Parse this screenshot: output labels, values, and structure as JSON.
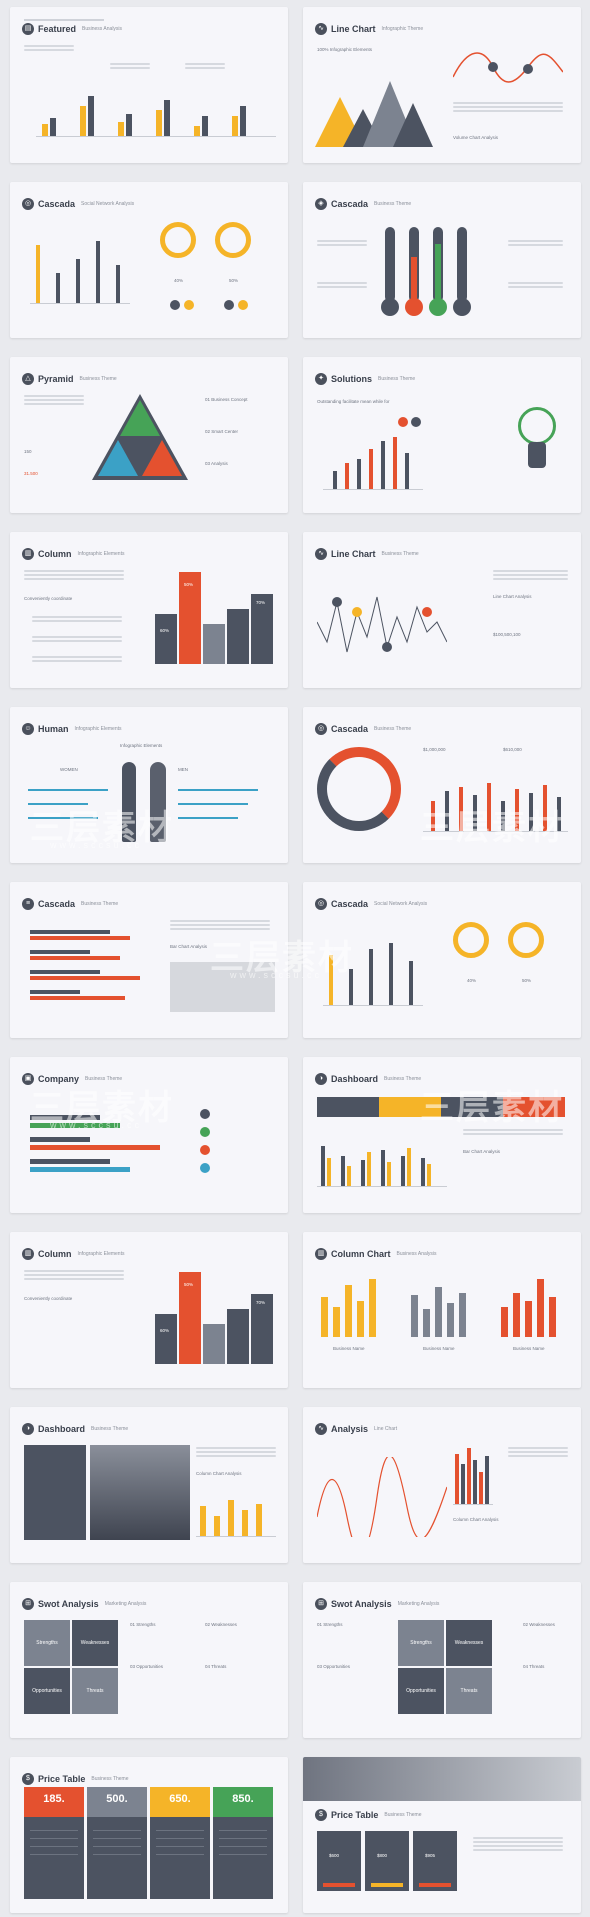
{
  "slides": [
    {
      "title": "Featured",
      "sub": "Business Analysis"
    },
    {
      "title": "Line Chart",
      "sub": "Infographic Theme"
    },
    {
      "title": "Cascada",
      "sub": "Social Network Analysis"
    },
    {
      "title": "Cascada",
      "sub": "Business Theme"
    },
    {
      "title": "Pyramid",
      "sub": "Business Theme"
    },
    {
      "title": "Solutions",
      "sub": "Business Theme"
    },
    {
      "title": "Column",
      "sub": "Infographic Elements"
    },
    {
      "title": "Line Chart",
      "sub": "Business Theme"
    },
    {
      "title": "Human",
      "sub": "Infographic Elements"
    },
    {
      "title": "Cascada",
      "sub": "Business Theme"
    },
    {
      "title": "Cascada",
      "sub": "Business Theme"
    },
    {
      "title": "Cascada",
      "sub": "Social Network Analysis"
    },
    {
      "title": "Company",
      "sub": "Business Theme"
    },
    {
      "title": "Dashboard",
      "sub": "Business Theme"
    },
    {
      "title": "Column",
      "sub": "Infographic Elements"
    },
    {
      "title": "Column Chart",
      "sub": "Business Analysis"
    },
    {
      "title": "Dashboard",
      "sub": "Business Theme"
    },
    {
      "title": "Analysis",
      "sub": "Line Chart"
    },
    {
      "title": "Swot Analysis",
      "sub": "Marketing Analysis"
    },
    {
      "title": "Swot Analysis",
      "sub": "Marketing Analysis"
    },
    {
      "title": "Price Table",
      "sub": "Business Theme"
    },
    {
      "title": "Price Table",
      "sub": "Business Theme"
    }
  ],
  "labels": {
    "s2_pct": "100% Infographic Elements",
    "s2_volume": "Volume Chart Analysis",
    "s3_pct_a": "40%",
    "s3_pct_b": "50%",
    "s5_one": "01 Business Concept",
    "s5_two": "02 Smart Center",
    "s5_three": "03 Analysis",
    "s5_val_a": "150",
    "s5_val_b": "31.500",
    "s6_sub": "Outstanding facilitate mean while for",
    "s7_pct_a": "60%",
    "s7_pct_b": "50%",
    "s7_pct_c": "70%",
    "s7_conveniently": "Conveniently coordinate",
    "s8_line": "Line Chart Analysis",
    "s8_money": "$100,500,100",
    "s9_people": "Infographic Elements",
    "s9_women": "WOMEN",
    "s9_men": "MEN",
    "s10_a": "$1,000,000",
    "s10_b": "$610,000",
    "s11_bar": "Bar Chart Analysis",
    "s14_bar": "Bar Chart Analysis",
    "s16_business": "Business Name",
    "s17_col": "Column Chart Analysis",
    "s18_col": "Column Chart Analysis",
    "swot_s": "Strengths",
    "swot_w": "Weaknesses",
    "swot_o": "Opportunities",
    "swot_t": "Threats",
    "swot_s_num": "01 Strengths",
    "swot_w_num": "02 Weaknesses",
    "swot_o_num": "03 Opportunities",
    "swot_t_num": "04 Threats",
    "price_a": "185.",
    "price_b": "500.",
    "price_c": "650.",
    "price_d": "850.",
    "price2_a": "$600",
    "price2_b": "$800",
    "price2_c": "$905"
  },
  "watermark": {
    "main": "三层素材",
    "sub": "www.sccsu.cc"
  },
  "colors": {
    "yellow": "#f5b428",
    "red": "#e4512f",
    "dark": "#4c5361",
    "gray": "#7c8390",
    "green": "#46a357",
    "blue": "#3ba1c6"
  }
}
